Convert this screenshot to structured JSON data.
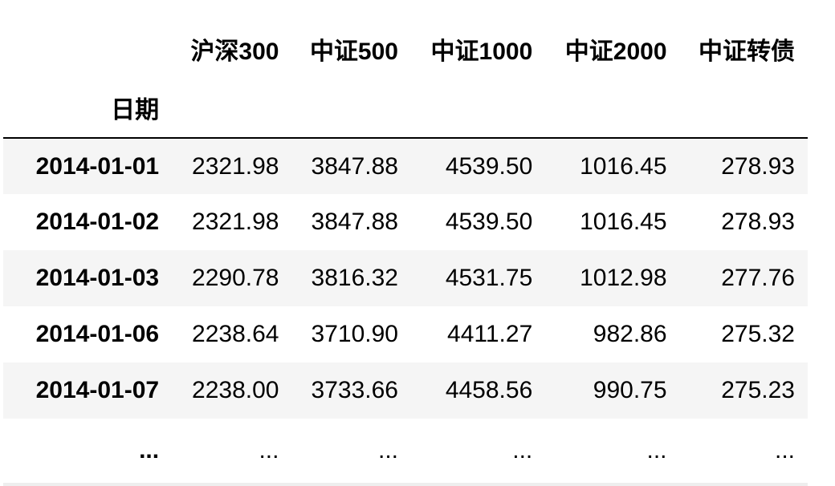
{
  "table": {
    "index_name": "日期",
    "columns": [
      "沪深300",
      "中证500",
      "中证1000",
      "中证2000",
      "中证转债"
    ],
    "rows": [
      {
        "index": "2014-01-01",
        "values": [
          "2321.98",
          "3847.88",
          "4539.50",
          "1016.45",
          "278.93"
        ]
      },
      {
        "index": "2014-01-02",
        "values": [
          "2321.98",
          "3847.88",
          "4539.50",
          "1016.45",
          "278.93"
        ]
      },
      {
        "index": "2014-01-03",
        "values": [
          "2290.78",
          "3816.32",
          "4531.75",
          "1012.98",
          "277.76"
        ]
      },
      {
        "index": "2014-01-06",
        "values": [
          "2238.64",
          "3710.90",
          "4411.27",
          "982.86",
          "275.32"
        ]
      },
      {
        "index": "2014-01-07",
        "values": [
          "2238.00",
          "3733.66",
          "4458.56",
          "990.75",
          "275.23"
        ]
      }
    ],
    "ellipsis_row": {
      "index": "...",
      "values": [
        "...",
        "...",
        "...",
        "...",
        "..."
      ]
    }
  }
}
